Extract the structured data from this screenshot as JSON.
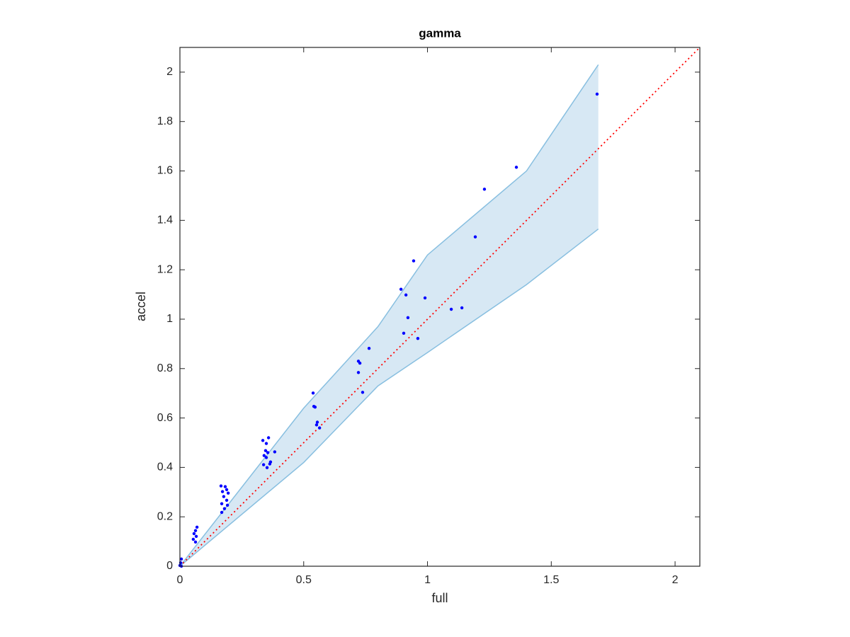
{
  "chart_data": {
    "type": "scatter",
    "title": "gamma",
    "x_label": "full",
    "y_label": "accel",
    "xlim": [
      0,
      2.1
    ],
    "ylim": [
      0,
      2.1
    ],
    "xticks": [
      0,
      0.5,
      1,
      1.5,
      2
    ],
    "yticks": [
      0,
      0.2,
      0.4,
      0.6,
      0.8,
      1,
      1.2,
      1.4,
      1.6,
      1.8,
      2
    ],
    "grid": false,
    "band": {
      "x": [
        0,
        0.5,
        0.8,
        1,
        1.4,
        1.69
      ],
      "upper": [
        0,
        0.64,
        0.97,
        1.26,
        1.6,
        2.03
      ],
      "lower": [
        0,
        0.42,
        0.73,
        0.865,
        1.14,
        1.365
      ],
      "color": "#88bfe0",
      "fill": "#d7e8f4"
    },
    "reference_line": {
      "x": [
        0,
        2.1
      ],
      "values": [
        0,
        2.1
      ],
      "color": "#ff0000"
    },
    "series": [
      {
        "color": "#0000ff",
        "x": [
          1.685,
          1.359,
          1.23,
          1.193,
          0.944,
          0.893,
          0.913,
          0.99,
          1.096,
          1.139,
          0.921,
          0.904,
          0.961,
          0.764,
          0.721,
          0.727,
          0.721,
          0.738,
          0.538,
          0.541,
          0.546,
          0.555,
          0.552,
          0.564,
          0.335,
          0.358,
          0.349,
          0.346,
          0.355,
          0.34,
          0.349,
          0.383,
          0.366,
          0.363,
          0.338,
          0.352,
          0.166,
          0.183,
          0.189,
          0.172,
          0.195,
          0.177,
          0.189,
          0.169,
          0.192,
          0.18,
          0.169,
          0.069,
          0.063,
          0.057,
          0.066,
          0.054,
          0.063,
          0.006,
          0.003,
          0.006,
          0
        ],
        "values": [
          1.911,
          1.615,
          1.526,
          1.333,
          1.236,
          1.121,
          1.098,
          1.086,
          1.04,
          1.046,
          1.006,
          0.943,
          0.922,
          0.882,
          0.83,
          0.822,
          0.784,
          0.704,
          0.701,
          0.647,
          0.644,
          0.583,
          0.572,
          0.56,
          0.509,
          0.52,
          0.497,
          0.468,
          0.46,
          0.448,
          0.44,
          0.463,
          0.422,
          0.414,
          0.411,
          0.399,
          0.325,
          0.322,
          0.31,
          0.302,
          0.296,
          0.282,
          0.267,
          0.253,
          0.247,
          0.233,
          0.218,
          0.158,
          0.144,
          0.132,
          0.121,
          0.109,
          0.098,
          0.029,
          0.014,
          0,
          0.003
        ]
      }
    ]
  }
}
